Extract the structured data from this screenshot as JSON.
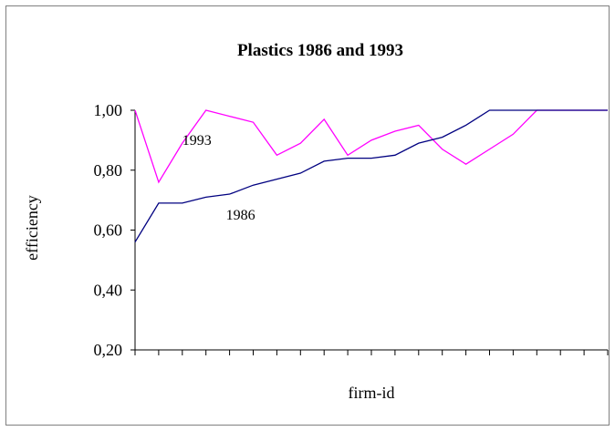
{
  "chart_data": {
    "type": "line",
    "title": "Plastics 1986 and 1993",
    "xlabel": "firm-id",
    "ylabel": "efficiency",
    "ylim": [
      0.2,
      1.0
    ],
    "yticks": [
      "0,20",
      "0,40",
      "0,60",
      "0,80",
      "1,00"
    ],
    "ytick_values": [
      0.2,
      0.4,
      0.6,
      0.8,
      1.0
    ],
    "x_count": 21,
    "grid": false,
    "series": [
      {
        "name": "1993",
        "color": "#ff00ff",
        "values": [
          1.0,
          0.76,
          0.89,
          1.0,
          0.98,
          0.96,
          0.85,
          0.89,
          0.97,
          0.85,
          0.9,
          0.93,
          0.95,
          0.87,
          0.82,
          0.87,
          0.92,
          1.0,
          1.0,
          1.0,
          1.0
        ]
      },
      {
        "name": "1986",
        "color": "#000080",
        "values": [
          0.56,
          0.69,
          0.69,
          0.71,
          0.72,
          0.75,
          0.77,
          0.79,
          0.83,
          0.84,
          0.84,
          0.85,
          0.89,
          0.91,
          0.95,
          1.0,
          1.0,
          1.0,
          1.0,
          1.0,
          1.0
        ]
      }
    ]
  }
}
